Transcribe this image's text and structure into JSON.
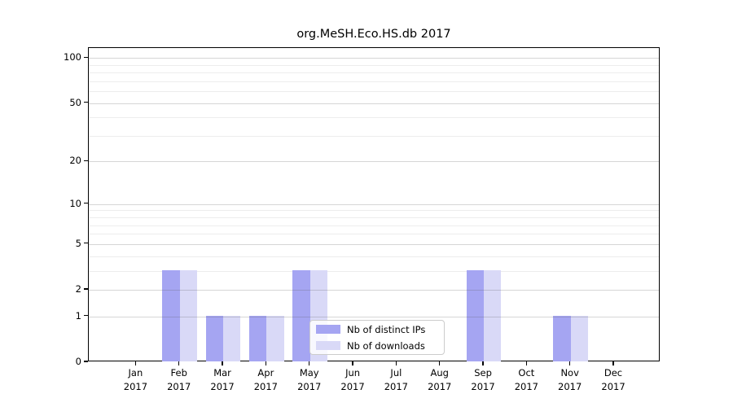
{
  "title": "org.MeSH.Eco.HS.db 2017",
  "chart_data": {
    "type": "bar",
    "title": "org.MeSH.Eco.HS.db 2017",
    "categories": [
      "Jan",
      "Feb",
      "Mar",
      "Apr",
      "May",
      "Jun",
      "Jul",
      "Aug",
      "Sep",
      "Oct",
      "Nov",
      "Dec"
    ],
    "year": "2017",
    "series": [
      {
        "name": "Nb of distinct IPs",
        "color": "#a5a5f2",
        "values": [
          0,
          3,
          1,
          1,
          3,
          0,
          0,
          0,
          3,
          0,
          1,
          0
        ]
      },
      {
        "name": "Nb of downloads",
        "color": "#d9d9f7",
        "values": [
          0,
          3,
          1,
          1,
          3,
          0,
          0,
          0,
          3,
          0,
          1,
          0
        ]
      }
    ],
    "xlabel": "",
    "ylabel": "",
    "y_scale": "log1p",
    "y_major_ticks": [
      0,
      1,
      2,
      5,
      10,
      20,
      50,
      100
    ],
    "y_minor_gridlines": [
      3,
      4,
      6,
      7,
      8,
      9,
      30,
      40,
      60,
      70,
      80,
      90
    ],
    "ylim": [
      0,
      116
    ],
    "grid": "horizontal",
    "legend_position": "lower center"
  },
  "legend": {
    "items": [
      {
        "label": "Nb of distinct IPs",
        "color": "#a5a5f2"
      },
      {
        "label": "Nb of downloads",
        "color": "#d9d9f7"
      }
    ]
  },
  "colors": {
    "background": "#ffffff",
    "grid_major": "#cccccc",
    "grid_minor": "#ededed",
    "spine": "#000000",
    "text": "#000000",
    "legend_border": "#cccccc"
  }
}
